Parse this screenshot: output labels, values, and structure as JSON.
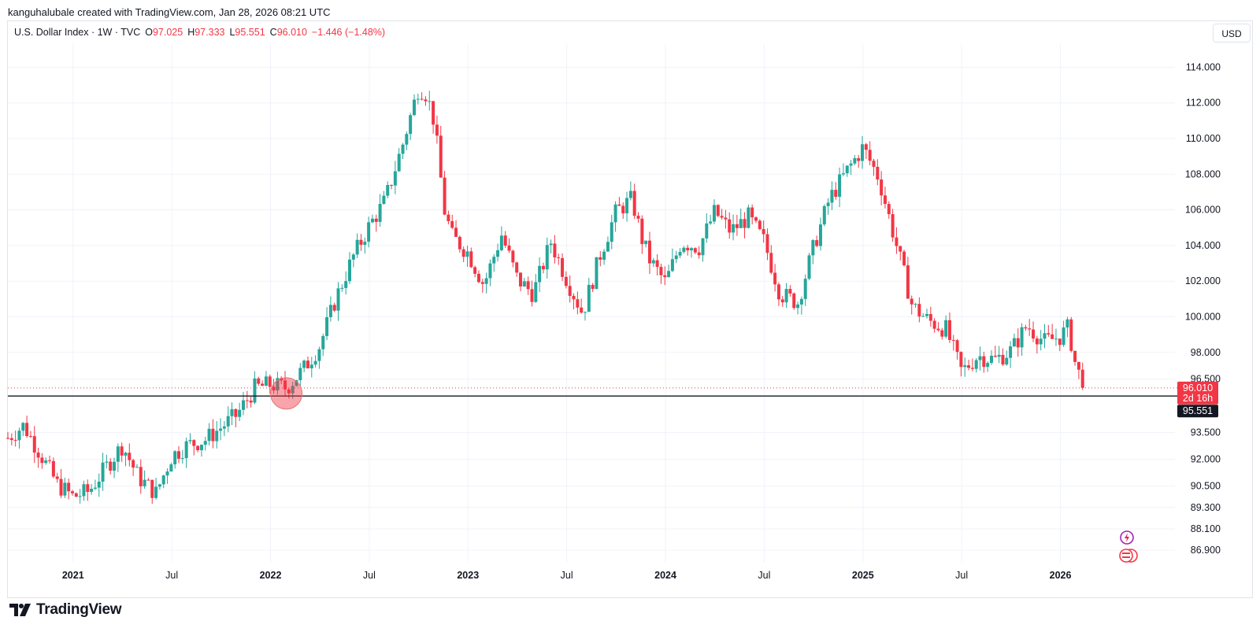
{
  "credit": "kanguhalubale created with TradingView.com, Jan 28, 2026 08:21 UTC",
  "legend": {
    "symbol": "U.S. Dollar Index · 1W · TVC",
    "open_label": "O",
    "open": "97.025",
    "high_label": "H",
    "high": "97.333",
    "low_label": "L",
    "low": "95.551",
    "close_label": "C",
    "close": "96.010",
    "change": "−1.446 (−1.48%)"
  },
  "currency": "USD",
  "brand": "TradingView",
  "colors": {
    "up": "#26a69a",
    "down": "#f23645",
    "support_line": "#131722",
    "highlight": "#f23645",
    "text": "#131722",
    "grid": "#f0f3fa"
  },
  "price_tags": {
    "last_price": "96.010",
    "countdown": "2d 16h",
    "low_price": "95.551"
  },
  "chart_data": {
    "type": "candlestick",
    "timeframe": "1W",
    "ylim": [
      86.2,
      115.3
    ],
    "y_ticks": [
      "86.900",
      "88.100",
      "89.300",
      "90.500",
      "92.000",
      "93.500",
      "96.500",
      "98.000",
      "100.000",
      "102.000",
      "104.000",
      "106.000",
      "108.000",
      "110.000",
      "112.000",
      "114.000"
    ],
    "x_ticks": [
      {
        "label": "2021",
        "major": true,
        "t": 0.0
      },
      {
        "label": "Jul",
        "major": false,
        "t": 0.5
      },
      {
        "label": "2022",
        "major": true,
        "t": 1.0
      },
      {
        "label": "Jul",
        "major": false,
        "t": 1.5
      },
      {
        "label": "2023",
        "major": true,
        "t": 2.0
      },
      {
        "label": "Jul",
        "major": false,
        "t": 2.5
      },
      {
        "label": "2024",
        "major": true,
        "t": 3.0
      },
      {
        "label": "Jul",
        "major": false,
        "t": 3.5
      },
      {
        "label": "2025",
        "major": true,
        "t": 4.0
      },
      {
        "label": "Jul",
        "major": false,
        "t": 4.5
      },
      {
        "label": "2026",
        "major": true,
        "t": 5.0
      }
    ],
    "x_range_years": [
      2020.67,
      2026.58
    ],
    "support_level": 95.551,
    "highlight_point": {
      "t_year": 2022.08,
      "value": 95.7
    },
    "closes": [
      [
        2020.67,
        93.2
      ],
      [
        2020.75,
        93.9
      ],
      [
        2020.83,
        92.4
      ],
      [
        2020.92,
        90.6
      ],
      [
        2021.0,
        89.9
      ],
      [
        2021.08,
        90.2
      ],
      [
        2021.17,
        91.6
      ],
      [
        2021.25,
        92.8
      ],
      [
        2021.33,
        91.0
      ],
      [
        2021.42,
        90.1
      ],
      [
        2021.5,
        92.2
      ],
      [
        2021.58,
        92.8
      ],
      [
        2021.67,
        93.1
      ],
      [
        2021.75,
        93.8
      ],
      [
        2021.83,
        94.5
      ],
      [
        2021.92,
        96.0
      ],
      [
        2022.0,
        96.2
      ],
      [
        2022.08,
        96.0
      ],
      [
        2022.17,
        97.1
      ],
      [
        2022.25,
        98.4
      ],
      [
        2022.33,
        101.0
      ],
      [
        2022.42,
        103.4
      ],
      [
        2022.5,
        105.1
      ],
      [
        2022.58,
        106.5
      ],
      [
        2022.67,
        109.7
      ],
      [
        2022.75,
        112.9
      ],
      [
        2022.79,
        112.5
      ],
      [
        2022.83,
        110.9
      ],
      [
        2022.88,
        106.0
      ],
      [
        2022.92,
        104.5
      ],
      [
        2023.0,
        103.6
      ],
      [
        2023.08,
        101.8
      ],
      [
        2023.17,
        104.6
      ],
      [
        2023.25,
        102.1
      ],
      [
        2023.33,
        101.3
      ],
      [
        2023.42,
        104.2
      ],
      [
        2023.5,
        102.1
      ],
      [
        2023.58,
        100.2
      ],
      [
        2023.67,
        103.5
      ],
      [
        2023.75,
        105.9
      ],
      [
        2023.83,
        106.6
      ],
      [
        2023.88,
        104.4
      ],
      [
        2023.92,
        103.2
      ],
      [
        2024.0,
        101.9
      ],
      [
        2024.08,
        104.2
      ],
      [
        2024.17,
        103.9
      ],
      [
        2024.25,
        105.9
      ],
      [
        2024.33,
        104.8
      ],
      [
        2024.42,
        105.6
      ],
      [
        2024.5,
        104.2
      ],
      [
        2024.58,
        101.3
      ],
      [
        2024.67,
        100.8
      ],
      [
        2024.75,
        103.9
      ],
      [
        2024.83,
        106.6
      ],
      [
        2024.92,
        108.2
      ],
      [
        2025.0,
        109.5
      ],
      [
        2025.08,
        107.8
      ],
      [
        2025.17,
        104.0
      ],
      [
        2025.25,
        100.6
      ],
      [
        2025.33,
        99.8
      ],
      [
        2025.42,
        99.3
      ],
      [
        2025.5,
        96.9
      ],
      [
        2025.58,
        97.8
      ],
      [
        2025.67,
        97.6
      ],
      [
        2025.75,
        98.1
      ],
      [
        2025.83,
        99.5
      ],
      [
        2025.92,
        98.6
      ],
      [
        2026.0,
        98.9
      ],
      [
        2026.04,
        99.4
      ],
      [
        2026.08,
        97.1
      ],
      [
        2026.13,
        96.01
      ]
    ]
  }
}
